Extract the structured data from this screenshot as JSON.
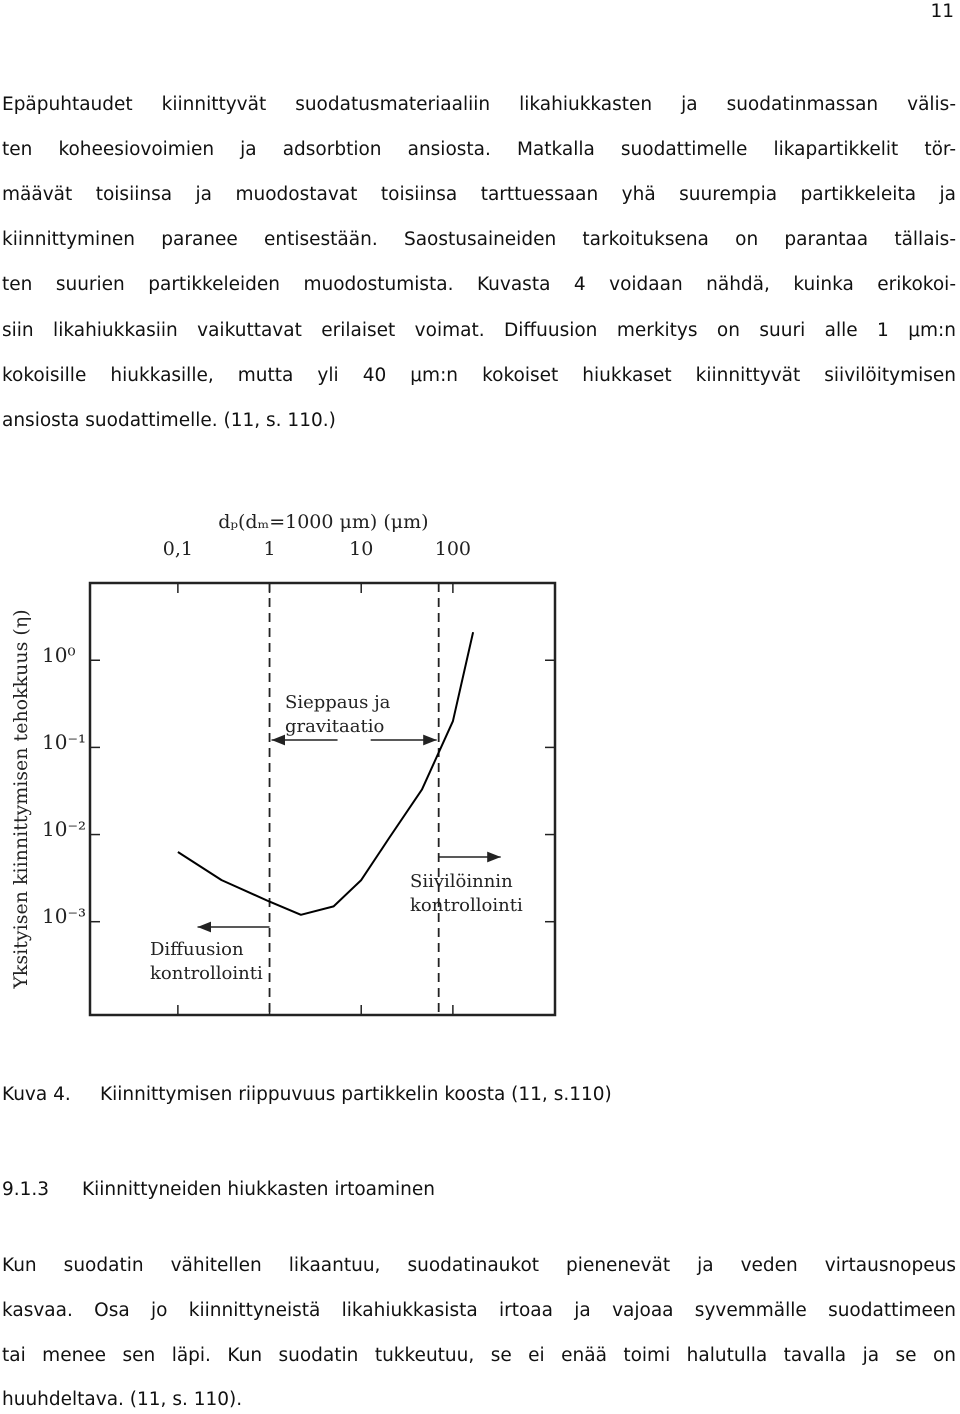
{
  "page_number": "11",
  "body": {
    "lines": [
      "Epäpuhtaudet kiinnittyvät suodatusmateriaaliin likahiukkasten ja suodatinmassan välis-",
      "ten koheesiovoimien ja adsorbtion ansiosta. Matkalla suodattimelle likapartikkelit tör-",
      "määvät toisiinsa ja muodostavat toisiinsa tarttuessaan yhä suurempia partikkeleita ja",
      "kiinnittyminen paranee entisestään. Saostusaineiden tarkoituksena on parantaa tällais-",
      "ten suurien partikkeleiden muodostumista. Kuvasta 4 voidaan nähdä, kuinka erikokoi-",
      "siin likahiukkasiin vaikuttavat erilaiset voimat. Diffuusion merkitys on suuri alle 1 μm:n",
      "kokoisille hiukkasille, mutta yli 40 μm:n kokoiset hiukkaset kiinnittyvät siivilöitymisen",
      "ansiosta suodattimelle. (11, s. 110.)"
    ]
  },
  "figure": {
    "type": "line",
    "xlabel": "dₚ(dₘ=1000 μm) (μm)",
    "ylabel": "Yksityisen kiinnittymisen tehokkuus (η)",
    "xscale": "log",
    "yscale": "log",
    "xlim": [
      0.011,
      1300
    ],
    "ylim": [
      8.5e-05,
      7.7
    ],
    "xticks": [
      {
        "value": 0.1,
        "label": "0,1"
      },
      1,
      10,
      100
    ],
    "yticks": [
      {
        "value": 1,
        "label": "10⁰"
      },
      {
        "value": 0.1,
        "label": "10⁻¹"
      },
      {
        "value": 0.01,
        "label": "10⁻²"
      },
      {
        "value": 0.001,
        "label": "10⁻³"
      }
    ],
    "x": [
      0.1,
      0.3,
      1,
      2.2,
      5,
      10,
      20,
      46,
      100,
      166
    ],
    "series": [
      {
        "color": "#000000",
        "values": [
          0.0063,
          0.003,
          0.0017,
          0.0012,
          0.0015,
          0.003,
          0.009,
          0.033,
          0.2,
          2.1
        ]
      }
    ],
    "dividers": [
      1,
      70
    ],
    "annotations": [
      {
        "lines": [
          "Sieppaus ja",
          "gravitaatio"
        ]
      },
      {
        "lines": [
          "Siivilöinnin",
          "kontrollointi"
        ]
      },
      {
        "lines": [
          "Diffuusion",
          "kontrollointi"
        ]
      }
    ]
  },
  "caption": {
    "number": "Kuva 4.",
    "text": "Kiinnittymisen riippuvuus partikkelin koosta (11, s.110)"
  },
  "section": {
    "number": "9.1.3",
    "title": "Kiinnittyneiden hiukkasten irtoaminen",
    "lines": [
      "Kun suodatin vähitellen likaantuu, suodatinaukot pienenevät ja veden virtausnopeus",
      "kasvaa. Osa jo kiinnittyneistä likahiukkasista irtoaa ja vajoaa syvemmälle suodattimeen",
      "tai menee sen läpi. Kun suodatin tukkeutuu, se ei enää toimi halutulla tavalla ja se on",
      "huuhdeltava. (11, s. 110)."
    ]
  }
}
